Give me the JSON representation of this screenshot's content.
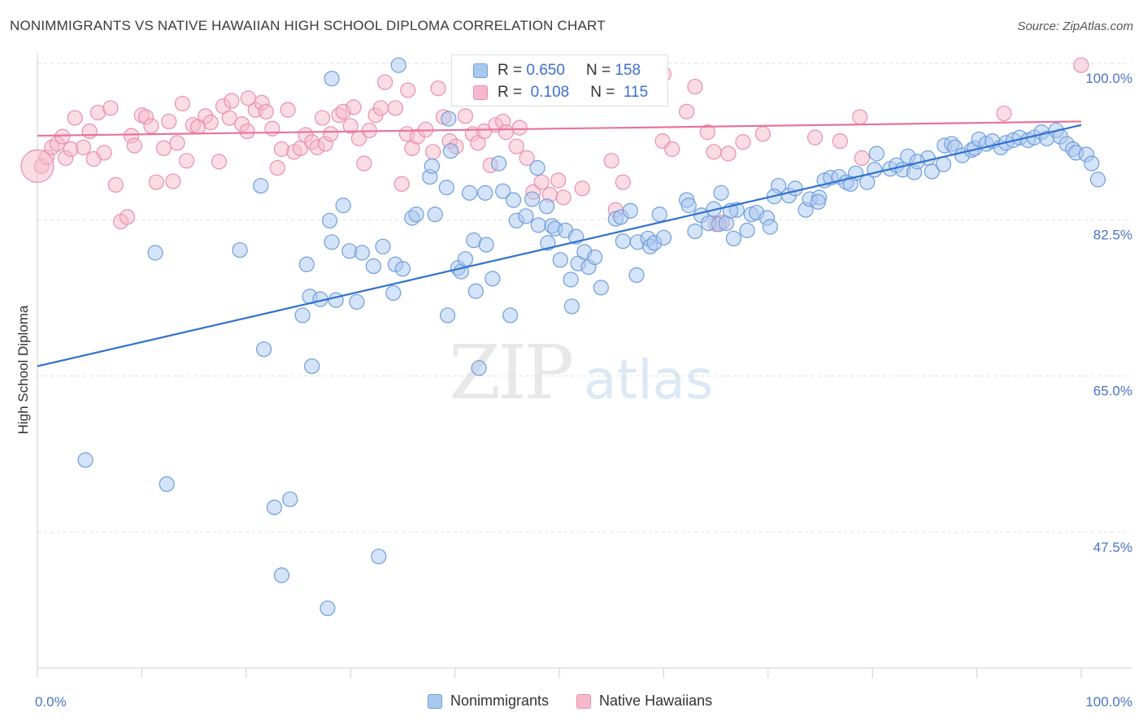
{
  "header": {
    "title": "NONIMMIGRANTS VS NATIVE HAWAIIAN HIGH SCHOOL DIPLOMA CORRELATION CHART",
    "source": "Source: ZipAtlas.com"
  },
  "watermark": {
    "zip": "ZIP",
    "atlas": "atlas"
  },
  "legend": {
    "rows": [
      {
        "r_label": "R =",
        "r_value": "0.650",
        "n_label": "N =",
        "n_value": "158"
      },
      {
        "r_label": "R =",
        "r_value": "0.108",
        "n_label": "N =",
        "n_value": "115"
      }
    ],
    "series_names": [
      "Nonimmigrants",
      "Native Hawaiians"
    ]
  },
  "colors": {
    "blue_fill": "#a9c8ef",
    "blue_stroke": "#6f9edc",
    "blue_line": "#2f72cf",
    "pink_fill": "#f6b9cc",
    "pink_stroke": "#eb8fac",
    "pink_line": "#e8739a",
    "tick_text": "#4a74c4",
    "grid": "#dddddd"
  },
  "chart_data": {
    "type": "scatter",
    "title": "NONIMMIGRANTS VS NATIVE HAWAIIAN HIGH SCHOOL DIPLOMA CORRELATION CHART",
    "xlabel": "",
    "ylabel": "High School Diploma",
    "xlim": [
      0,
      100
    ],
    "ylim": [
      32.5,
      101.5
    ],
    "x_tick_labels": [
      "0.0%",
      "100.0%"
    ],
    "y_ticks": [
      47.5,
      65.0,
      82.5,
      100.0
    ],
    "y_tick_labels": [
      "47.5%",
      "65.0%",
      "82.5%",
      "100.0%"
    ],
    "grid": true,
    "legend_position": "top-center",
    "series": [
      {
        "name": "Nonimmigrants",
        "color": "#a9c8ef",
        "trend": [
          [
            0,
            66.1
          ],
          [
            100,
            93.1
          ]
        ],
        "points": [
          [
            4.6,
            55.6
          ],
          [
            11.3,
            78.8
          ],
          [
            12.4,
            52.9
          ],
          [
            19.4,
            79.1
          ],
          [
            21.4,
            86.3
          ],
          [
            21.7,
            68.0
          ],
          [
            22.7,
            50.3
          ],
          [
            23.4,
            42.7
          ],
          [
            24.2,
            51.2
          ],
          [
            25.4,
            71.8
          ],
          [
            25.8,
            77.5
          ],
          [
            26.1,
            73.9
          ],
          [
            26.3,
            66.1
          ],
          [
            27.1,
            73.6
          ],
          [
            28.0,
            82.4
          ],
          [
            28.2,
            80.0
          ],
          [
            28.6,
            73.5
          ],
          [
            29.3,
            84.1
          ],
          [
            27.8,
            39.0
          ],
          [
            28.2,
            98.3
          ],
          [
            29.9,
            79.0
          ],
          [
            30.6,
            73.3
          ],
          [
            31.1,
            78.8
          ],
          [
            32.2,
            77.3
          ],
          [
            32.7,
            44.8
          ],
          [
            33.1,
            79.5
          ],
          [
            34.1,
            74.3
          ],
          [
            34.3,
            77.5
          ],
          [
            35.0,
            77.0
          ],
          [
            34.6,
            99.8
          ],
          [
            35.9,
            82.7
          ],
          [
            36.3,
            83.1
          ],
          [
            37.6,
            87.3
          ],
          [
            37.8,
            88.5
          ],
          [
            38.1,
            83.1
          ],
          [
            39.2,
            86.1
          ],
          [
            39.6,
            90.2
          ],
          [
            39.3,
            71.8
          ],
          [
            39.4,
            93.8
          ],
          [
            40.3,
            77.1
          ],
          [
            40.6,
            76.7
          ],
          [
            41.0,
            78.1
          ],
          [
            41.8,
            80.2
          ],
          [
            41.4,
            85.5
          ],
          [
            42.0,
            74.5
          ],
          [
            42.3,
            65.9
          ],
          [
            42.9,
            85.5
          ],
          [
            43.0,
            79.7
          ],
          [
            43.6,
            75.9
          ],
          [
            44.2,
            88.8
          ],
          [
            44.6,
            85.7
          ],
          [
            45.3,
            71.8
          ],
          [
            45.6,
            84.7
          ],
          [
            45.9,
            82.4
          ],
          [
            46.8,
            82.9
          ],
          [
            47.4,
            84.8
          ],
          [
            47.9,
            88.3
          ],
          [
            48.0,
            81.9
          ],
          [
            48.8,
            84.0
          ],
          [
            48.9,
            79.9
          ],
          [
            49.3,
            81.8
          ],
          [
            49.6,
            81.5
          ],
          [
            50.1,
            78.0
          ],
          [
            50.6,
            81.3
          ],
          [
            51.1,
            75.8
          ],
          [
            51.2,
            72.8
          ],
          [
            51.6,
            80.6
          ],
          [
            51.8,
            77.6
          ],
          [
            52.4,
            78.9
          ],
          [
            52.8,
            77.2
          ],
          [
            53.4,
            78.3
          ],
          [
            54.0,
            74.9
          ],
          [
            55.4,
            82.6
          ],
          [
            55.9,
            82.8
          ],
          [
            56.1,
            80.1
          ],
          [
            56.8,
            83.5
          ],
          [
            57.4,
            76.3
          ],
          [
            57.5,
            80.0
          ],
          [
            58.5,
            80.4
          ],
          [
            58.7,
            79.5
          ],
          [
            59.1,
            79.9
          ],
          [
            60.0,
            80.5
          ],
          [
            62.2,
            84.7
          ],
          [
            62.4,
            84.1
          ],
          [
            63.0,
            81.2
          ],
          [
            63.6,
            83.0
          ],
          [
            64.3,
            82.1
          ],
          [
            64.8,
            83.7
          ],
          [
            65.3,
            82.0
          ],
          [
            65.5,
            85.5
          ],
          [
            66.0,
            82.1
          ],
          [
            67.0,
            83.6
          ],
          [
            66.7,
            80.4
          ],
          [
            68.0,
            81.3
          ],
          [
            68.4,
            83.1
          ],
          [
            68.9,
            83.3
          ],
          [
            69.9,
            82.7
          ],
          [
            70.2,
            81.7
          ],
          [
            71.0,
            86.3
          ],
          [
            72.0,
            85.2
          ],
          [
            72.6,
            86.0
          ],
          [
            73.6,
            83.6
          ],
          [
            74.0,
            84.8
          ],
          [
            74.9,
            85.0
          ],
          [
            75.4,
            86.9
          ],
          [
            76.0,
            87.2
          ],
          [
            76.8,
            87.3
          ],
          [
            77.5,
            86.7
          ],
          [
            78.4,
            87.7
          ],
          [
            79.5,
            86.7
          ],
          [
            80.4,
            89.9
          ],
          [
            80.2,
            88.1
          ],
          [
            81.7,
            88.2
          ],
          [
            82.3,
            88.6
          ],
          [
            82.9,
            88.1
          ],
          [
            83.4,
            89.6
          ],
          [
            84.0,
            87.8
          ],
          [
            85.3,
            89.4
          ],
          [
            85.7,
            87.9
          ],
          [
            86.8,
            88.7
          ],
          [
            86.9,
            90.8
          ],
          [
            87.6,
            91.0
          ],
          [
            87.9,
            90.6
          ],
          [
            88.6,
            89.7
          ],
          [
            89.5,
            90.3
          ],
          [
            89.8,
            90.5
          ],
          [
            90.2,
            91.5
          ],
          [
            90.9,
            91.0
          ],
          [
            91.5,
            91.3
          ],
          [
            92.3,
            90.6
          ],
          [
            92.8,
            91.1
          ],
          [
            93.5,
            91.4
          ],
          [
            94.1,
            91.7
          ],
          [
            94.9,
            91.4
          ],
          [
            95.5,
            91.7
          ],
          [
            96.2,
            92.3
          ],
          [
            96.7,
            91.6
          ],
          [
            97.6,
            92.5
          ],
          [
            98.0,
            91.8
          ],
          [
            98.6,
            91.0
          ],
          [
            99.2,
            90.4
          ],
          [
            99.5,
            90.0
          ],
          [
            100.5,
            89.8
          ],
          [
            101.0,
            88.8
          ],
          [
            101.6,
            87.0
          ],
          [
            59.6,
            83.1
          ],
          [
            66.4,
            83.5
          ],
          [
            70.6,
            85.1
          ],
          [
            74.8,
            84.5
          ],
          [
            77.9,
            86.5
          ],
          [
            84.3,
            89.0
          ]
        ]
      },
      {
        "name": "Native Hawaiians",
        "color": "#f6b9cc",
        "trend": [
          [
            0,
            91.9
          ],
          [
            100,
            93.5
          ]
        ],
        "points": [
          [
            0.4,
            88.5
          ],
          [
            0.9,
            89.5
          ],
          [
            1.4,
            90.6
          ],
          [
            1.9,
            91.0
          ],
          [
            2.4,
            91.8
          ],
          [
            2.7,
            89.4
          ],
          [
            3.2,
            90.4
          ],
          [
            3.6,
            93.9
          ],
          [
            4.4,
            90.6
          ],
          [
            5.0,
            92.4
          ],
          [
            5.4,
            89.3
          ],
          [
            5.8,
            94.5
          ],
          [
            6.4,
            90.0
          ],
          [
            7.0,
            95.0
          ],
          [
            7.5,
            86.4
          ],
          [
            8.0,
            82.3
          ],
          [
            8.6,
            82.8
          ],
          [
            9.0,
            91.9
          ],
          [
            9.3,
            90.8
          ],
          [
            10.0,
            94.2
          ],
          [
            10.4,
            94.0
          ],
          [
            10.9,
            93.0
          ],
          [
            11.4,
            86.7
          ],
          [
            12.1,
            90.5
          ],
          [
            12.6,
            93.5
          ],
          [
            13.0,
            86.8
          ],
          [
            13.4,
            91.1
          ],
          [
            13.9,
            95.5
          ],
          [
            14.3,
            89.1
          ],
          [
            14.9,
            93.1
          ],
          [
            15.4,
            92.9
          ],
          [
            16.1,
            94.1
          ],
          [
            16.6,
            93.4
          ],
          [
            17.4,
            89.0
          ],
          [
            17.8,
            95.2
          ],
          [
            18.4,
            93.9
          ],
          [
            18.6,
            95.8
          ],
          [
            19.6,
            93.2
          ],
          [
            20.1,
            92.4
          ],
          [
            20.9,
            94.8
          ],
          [
            21.5,
            95.6
          ],
          [
            21.9,
            94.6
          ],
          [
            22.5,
            92.7
          ],
          [
            23.0,
            88.3
          ],
          [
            23.4,
            90.4
          ],
          [
            24.0,
            94.8
          ],
          [
            24.6,
            90.1
          ],
          [
            25.2,
            90.5
          ],
          [
            25.7,
            92.0
          ],
          [
            26.3,
            91.2
          ],
          [
            26.8,
            90.6
          ],
          [
            27.3,
            93.9
          ],
          [
            27.6,
            91.0
          ],
          [
            28.1,
            92.1
          ],
          [
            28.9,
            94.2
          ],
          [
            29.3,
            94.6
          ],
          [
            30.0,
            93.0
          ],
          [
            30.3,
            95.1
          ],
          [
            30.8,
            91.6
          ],
          [
            31.3,
            88.8
          ],
          [
            31.8,
            92.5
          ],
          [
            32.4,
            94.2
          ],
          [
            32.9,
            95.0
          ],
          [
            33.3,
            97.9
          ],
          [
            34.3,
            95.0
          ],
          [
            34.9,
            86.5
          ],
          [
            35.4,
            92.1
          ],
          [
            35.9,
            90.5
          ],
          [
            36.4,
            91.8
          ],
          [
            37.2,
            92.6
          ],
          [
            37.9,
            90.1
          ],
          [
            38.4,
            97.2
          ],
          [
            38.9,
            94.0
          ],
          [
            39.5,
            91.3
          ],
          [
            40.1,
            90.7
          ],
          [
            41.0,
            94.1
          ],
          [
            41.7,
            92.1
          ],
          [
            42.2,
            91.1
          ],
          [
            42.8,
            92.4
          ],
          [
            43.4,
            88.6
          ],
          [
            43.9,
            93.1
          ],
          [
            44.6,
            93.5
          ],
          [
            44.9,
            92.3
          ],
          [
            45.9,
            90.7
          ],
          [
            46.9,
            89.4
          ],
          [
            47.5,
            85.6
          ],
          [
            48.3,
            86.7
          ],
          [
            49.1,
            85.3
          ],
          [
            49.9,
            86.9
          ],
          [
            50.4,
            85.0
          ],
          [
            52.2,
            86.0
          ],
          [
            55.4,
            83.6
          ],
          [
            56.1,
            86.7
          ],
          [
            59.9,
            91.3
          ],
          [
            60.8,
            90.4
          ],
          [
            62.2,
            94.6
          ],
          [
            63.0,
            97.4
          ],
          [
            64.2,
            92.3
          ],
          [
            64.8,
            90.1
          ],
          [
            65.0,
            82.0
          ],
          [
            65.6,
            82.2
          ],
          [
            66.2,
            89.9
          ],
          [
            67.6,
            91.2
          ],
          [
            69.5,
            92.1
          ],
          [
            74.5,
            91.7
          ],
          [
            76.9,
            91.3
          ],
          [
            78.8,
            94.0
          ],
          [
            79.0,
            89.4
          ],
          [
            92.6,
            94.4
          ],
          [
            100.0,
            99.8
          ],
          [
            58.9,
            99.5
          ],
          [
            60.0,
            98.8
          ],
          [
            35.5,
            97.0
          ],
          [
            20.2,
            96.1
          ],
          [
            46.2,
            92.8
          ],
          [
            55.0,
            89.1
          ]
        ]
      }
    ]
  }
}
